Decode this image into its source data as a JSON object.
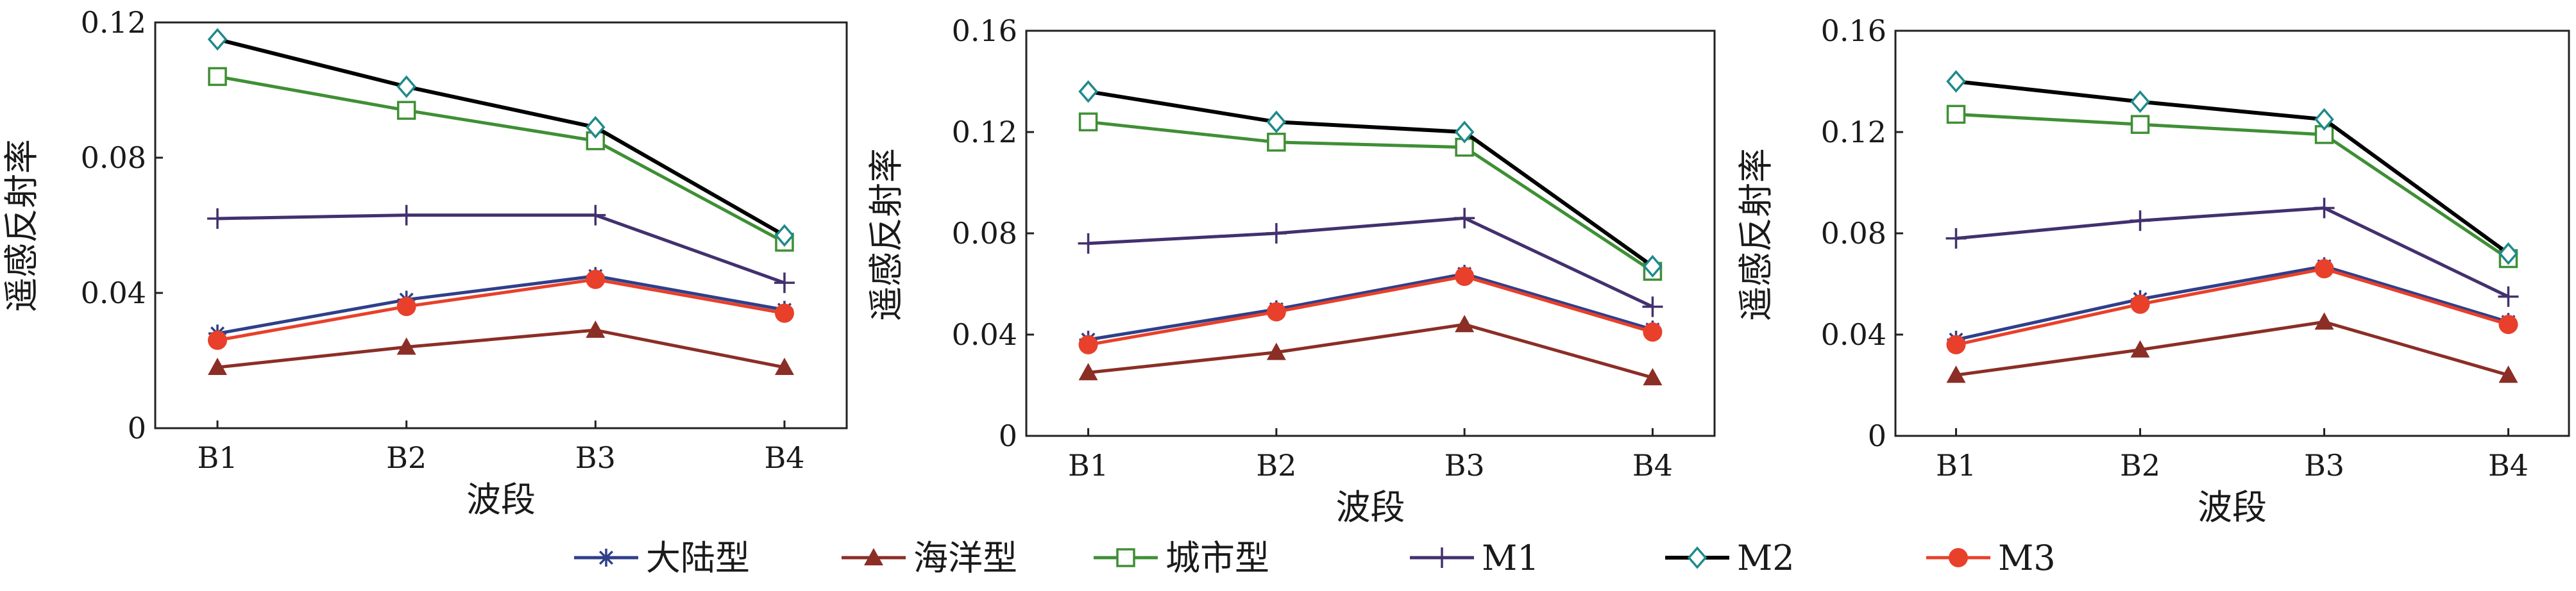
{
  "colors": {
    "大陆型": "#2f3f8a",
    "海洋型": "#8b2e26",
    "城市型": "#3f8f35",
    "M1": "#43306e",
    "M2": "#000000",
    "M3": "#e8402a",
    "marker_M2": "#1f8a8a"
  },
  "markers": {
    "大陆型": "asterisk",
    "海洋型": "triangle-filled",
    "城市型": "square-open",
    "M1": "plus",
    "M2": "diamond-open",
    "M3": "circle-filled"
  },
  "legend": {
    "items": [
      {
        "label": "大陆型",
        "series": "大陆型"
      },
      {
        "label": "海洋型",
        "series": "海洋型"
      },
      {
        "label": "城市型",
        "series": "城市型"
      },
      {
        "label": "M1",
        "series": "M1"
      },
      {
        "label": "M2",
        "series": "M2"
      },
      {
        "label": "M3",
        "series": "M3"
      }
    ]
  },
  "chart_data": [
    {
      "type": "line",
      "xlabel": "波段",
      "ylabel": "遥感反射率",
      "categories": [
        "B1",
        "B2",
        "B3",
        "B4"
      ],
      "ylim": [
        0,
        0.12
      ],
      "yticks": [
        "0",
        "0.04",
        "0.08",
        "0.12"
      ],
      "grid": false,
      "series": [
        {
          "name": "大陆型",
          "values": [
            0.028,
            0.038,
            0.045,
            0.035
          ]
        },
        {
          "name": "海洋型",
          "values": [
            0.018,
            0.024,
            0.029,
            0.018
          ]
        },
        {
          "name": "城市型",
          "values": [
            0.104,
            0.094,
            0.085,
            0.055
          ]
        },
        {
          "name": "M1",
          "values": [
            0.062,
            0.063,
            0.063,
            0.043
          ]
        },
        {
          "name": "M2",
          "values": [
            0.115,
            0.101,
            0.089,
            0.057
          ]
        },
        {
          "name": "M3",
          "values": [
            0.026,
            0.036,
            0.044,
            0.034
          ]
        }
      ]
    },
    {
      "type": "line",
      "xlabel": "波段",
      "ylabel": "遥感反射率",
      "categories": [
        "B1",
        "B2",
        "B3",
        "B4"
      ],
      "ylim": [
        0,
        0.16
      ],
      "yticks": [
        "0",
        "0.04",
        "0.08",
        "0.12",
        "0.16"
      ],
      "grid": false,
      "series": [
        {
          "name": "大陆型",
          "values": [
            0.038,
            0.05,
            0.064,
            0.042
          ]
        },
        {
          "name": "海洋型",
          "values": [
            0.025,
            0.033,
            0.044,
            0.023
          ]
        },
        {
          "name": "城市型",
          "values": [
            0.124,
            0.116,
            0.114,
            0.065
          ]
        },
        {
          "name": "M1",
          "values": [
            0.076,
            0.08,
            0.086,
            0.051
          ]
        },
        {
          "name": "M2",
          "values": [
            0.136,
            0.124,
            0.12,
            0.067
          ]
        },
        {
          "name": "M3",
          "values": [
            0.036,
            0.049,
            0.063,
            0.041
          ]
        }
      ]
    },
    {
      "type": "line",
      "xlabel": "波段",
      "ylabel": "遥感反射率",
      "categories": [
        "B1",
        "B2",
        "B3",
        "B4"
      ],
      "ylim": [
        0,
        0.16
      ],
      "yticks": [
        "0",
        "0.04",
        "0.08",
        "0.12",
        "0.16"
      ],
      "grid": false,
      "series": [
        {
          "name": "大陆型",
          "values": [
            0.038,
            0.054,
            0.067,
            0.045
          ]
        },
        {
          "name": "海洋型",
          "values": [
            0.024,
            0.034,
            0.045,
            0.024
          ]
        },
        {
          "name": "城市型",
          "values": [
            0.127,
            0.123,
            0.119,
            0.07
          ]
        },
        {
          "name": "M1",
          "values": [
            0.078,
            0.085,
            0.09,
            0.055
          ]
        },
        {
          "name": "M2",
          "values": [
            0.14,
            0.132,
            0.125,
            0.072
          ]
        },
        {
          "name": "M3",
          "values": [
            0.036,
            0.052,
            0.066,
            0.044
          ]
        }
      ]
    }
  ]
}
